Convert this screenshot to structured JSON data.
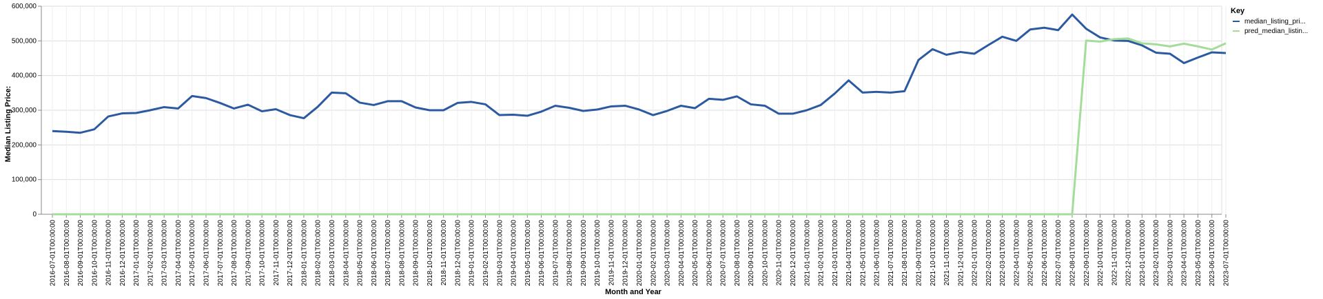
{
  "chart_data": {
    "type": "line",
    "xlabel": "Month and Year",
    "ylabel": "Median Listing Price:",
    "ylim": [
      0,
      600000
    ],
    "y_ticks": [
      "0",
      "100,000",
      "200,000",
      "300,000",
      "400,000",
      "500,000",
      "600,000"
    ],
    "grid": true,
    "legend_title": "Key",
    "legend_position": "top-right",
    "x": [
      "2016-07-01T00:00:00",
      "2016-08-01T00:00:00",
      "2016-09-01T00:00:00",
      "2016-10-01T00:00:00",
      "2016-11-01T00:00:00",
      "2016-12-01T00:00:00",
      "2017-01-01T00:00:00",
      "2017-02-01T00:00:00",
      "2017-03-01T00:00:00",
      "2017-04-01T00:00:00",
      "2017-05-01T00:00:00",
      "2017-06-01T00:00:00",
      "2017-07-01T00:00:00",
      "2017-08-01T00:00:00",
      "2017-09-01T00:00:00",
      "2017-10-01T00:00:00",
      "2017-11-01T00:00:00",
      "2017-12-01T00:00:00",
      "2018-01-01T00:00:00",
      "2018-02-01T00:00:00",
      "2018-03-01T00:00:00",
      "2018-04-01T00:00:00",
      "2018-05-01T00:00:00",
      "2018-06-01T00:00:00",
      "2018-07-01T00:00:00",
      "2018-08-01T00:00:00",
      "2018-09-01T00:00:00",
      "2018-10-01T00:00:00",
      "2018-11-01T00:00:00",
      "2018-12-01T00:00:00",
      "2019-01-01T00:00:00",
      "2019-02-01T00:00:00",
      "2019-03-01T00:00:00",
      "2019-04-01T00:00:00",
      "2019-05-01T00:00:00",
      "2019-06-01T00:00:00",
      "2019-07-01T00:00:00",
      "2019-08-01T00:00:00",
      "2019-09-01T00:00:00",
      "2019-10-01T00:00:00",
      "2019-11-01T00:00:00",
      "2019-12-01T00:00:00",
      "2020-01-01T00:00:00",
      "2020-02-01T00:00:00",
      "2020-03-01T00:00:00",
      "2020-04-01T00:00:00",
      "2020-05-01T00:00:00",
      "2020-06-01T00:00:00",
      "2020-07-01T00:00:00",
      "2020-08-01T00:00:00",
      "2020-09-01T00:00:00",
      "2020-10-01T00:00:00",
      "2020-11-01T00:00:00",
      "2020-12-01T00:00:00",
      "2021-01-01T00:00:00",
      "2021-02-01T00:00:00",
      "2021-03-01T00:00:00",
      "2021-04-01T00:00:00",
      "2021-05-01T00:00:00",
      "2021-06-01T00:00:00",
      "2021-07-01T00:00:00",
      "2021-08-01T00:00:00",
      "2021-09-01T00:00:00",
      "2021-10-01T00:00:00",
      "2021-11-01T00:00:00",
      "2021-12-01T00:00:00",
      "2022-01-01T00:00:00",
      "2022-02-01T00:00:00",
      "2022-03-01T00:00:00",
      "2022-04-01T00:00:00",
      "2022-05-01T00:00:00",
      "2022-06-01T00:00:00",
      "2022-07-01T00:00:00",
      "2022-08-01T00:00:00",
      "2022-09-01T00:00:00",
      "2022-10-01T00:00:00",
      "2022-11-01T00:00:00",
      "2022-12-01T00:00:00",
      "2023-01-01T00:00:00",
      "2023-02-01T00:00:00",
      "2023-03-01T00:00:00",
      "2023-04-01T00:00:00",
      "2023-05-01T00:00:00",
      "2023-06-01T00:00:00",
      "2023-07-01T00:00:00"
    ],
    "series": [
      {
        "name": "median_listing_pri...",
        "color": "#2c5aa0",
        "values": [
          240000,
          238000,
          235000,
          245000,
          282000,
          291000,
          292000,
          300000,
          309000,
          305000,
          341000,
          335000,
          321000,
          305000,
          316000,
          297000,
          303000,
          286000,
          277000,
          310000,
          351000,
          349000,
          322000,
          315000,
          326000,
          326000,
          308000,
          300000,
          300000,
          321000,
          324000,
          317000,
          286000,
          287000,
          284000,
          296000,
          313000,
          307000,
          298000,
          302000,
          311000,
          313000,
          302000,
          286000,
          298000,
          313000,
          306000,
          333000,
          330000,
          340000,
          317000,
          313000,
          290000,
          290000,
          300000,
          315000,
          348000,
          386000,
          351000,
          353000,
          351000,
          355000,
          445000,
          476000,
          460000,
          468000,
          463000,
          488000,
          512000,
          500000,
          533000,
          538000,
          531000,
          576000,
          535000,
          510000,
          501000,
          500000,
          487000,
          466000,
          463000,
          436000,
          452000,
          467000,
          465000
        ]
      },
      {
        "name": "pred_median_listin...",
        "color": "#a4dc9a",
        "values": [
          0,
          0,
          0,
          0,
          0,
          0,
          0,
          0,
          0,
          0,
          0,
          0,
          0,
          0,
          0,
          0,
          0,
          0,
          0,
          0,
          0,
          0,
          0,
          0,
          0,
          0,
          0,
          0,
          0,
          0,
          0,
          0,
          0,
          0,
          0,
          0,
          0,
          0,
          0,
          0,
          0,
          0,
          0,
          0,
          0,
          0,
          0,
          0,
          0,
          0,
          0,
          0,
          0,
          0,
          0,
          0,
          0,
          0,
          0,
          0,
          0,
          0,
          0,
          0,
          0,
          0,
          0,
          0,
          0,
          0,
          0,
          0,
          0,
          0,
          501000,
          498000,
          505000,
          507000,
          493000,
          490000,
          484000,
          492000,
          484000,
          475000,
          493000
        ]
      }
    ]
  }
}
